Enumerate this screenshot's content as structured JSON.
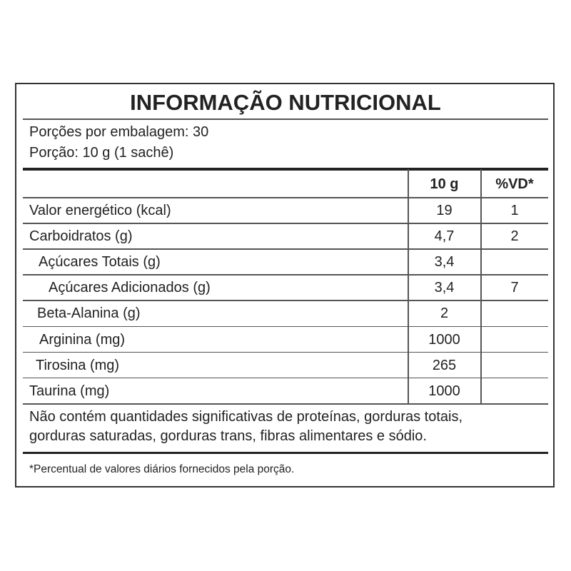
{
  "title": "INFORMAÇÃO NUTRICIONAL",
  "servings_per_package": "Porções por embalagem: 30",
  "serving_size": "Porção: 10 g (1 sachê)",
  "columns": [
    "10 g",
    "%VD*"
  ],
  "rows": [
    {
      "name": "Valor energético (kcal)",
      "amount": "19",
      "dv": "1"
    },
    {
      "name": "Carboidratos (g)",
      "amount": "4,7",
      "dv": "2"
    },
    {
      "name": "Açúcares Totais (g)",
      "amount": "3,4",
      "dv": ""
    },
    {
      "name": "Açúcares Adicionados (g)",
      "amount": "3,4",
      "dv": "7"
    },
    {
      "name": "Beta-Alanina (g)",
      "amount": "2",
      "dv": ""
    },
    {
      "name": "Arginina (mg)",
      "amount": "1000",
      "dv": ""
    },
    {
      "name": "Tirosina (mg)",
      "amount": "265",
      "dv": ""
    },
    {
      "name": "Taurina (mg)",
      "amount": "1000",
      "dv": ""
    }
  ],
  "note_line1": "Não contém quantidades significativas de proteínas, gorduras totais,",
  "note_line2": "gorduras saturadas, gorduras trans, fibras alimentares e sódio.",
  "footnote": "*Percentual de valores diários fornecidos pela porção."
}
